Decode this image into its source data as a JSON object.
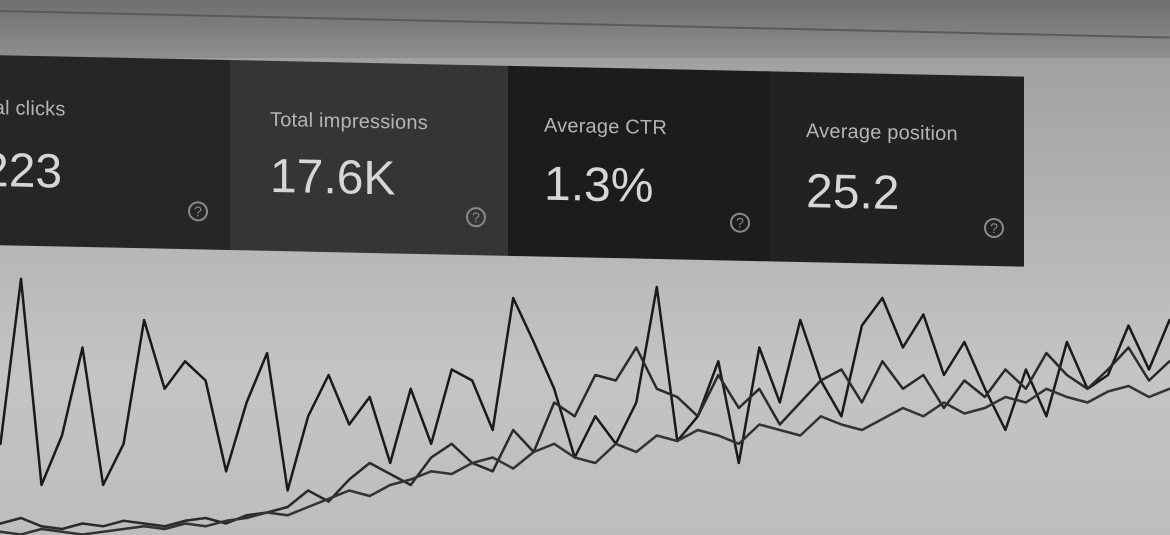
{
  "metrics": [
    {
      "label": "tal clicks",
      "value": "223",
      "icon": "help-circle-icon"
    },
    {
      "label": "Total impressions",
      "value": "17.6K",
      "icon": "help-circle-icon"
    },
    {
      "label": "Average CTR",
      "value": "1.3%",
      "icon": "help-circle-icon"
    },
    {
      "label": "Average position",
      "value": "25.2",
      "icon": "help-circle-icon"
    }
  ],
  "chart_data": {
    "type": "line",
    "grid": false,
    "legend": "none",
    "series": [
      {
        "values": [
          40,
          35,
          95,
          20,
          38,
          70,
          20,
          35,
          80,
          55,
          65,
          58,
          25,
          50,
          68,
          18,
          45,
          60,
          42,
          52,
          28,
          55,
          35,
          62,
          58,
          40,
          88,
          72,
          55,
          30,
          45,
          35,
          50,
          92,
          36,
          45,
          65,
          28,
          70,
          50,
          80,
          58,
          45,
          78,
          88,
          70,
          82,
          60,
          72,
          55,
          40,
          62,
          45,
          72,
          55,
          60,
          78,
          62,
          80,
          65
        ]
      },
      {
        "values": [
          5,
          6,
          8,
          5,
          4,
          6,
          5,
          7,
          6,
          5,
          7,
          8,
          6,
          9,
          10,
          12,
          18,
          14,
          22,
          28,
          24,
          20,
          30,
          35,
          28,
          25,
          40,
          32,
          50,
          45,
          60,
          58,
          70,
          55,
          52,
          45,
          60,
          48,
          55,
          42,
          50,
          58,
          62,
          50,
          65,
          55,
          60,
          48,
          58,
          52,
          62,
          55,
          68,
          60,
          55,
          62,
          70,
          58,
          65,
          60
        ]
      },
      {
        "values": [
          2,
          3,
          2,
          4,
          3,
          2,
          3,
          4,
          5,
          4,
          6,
          5,
          7,
          8,
          10,
          9,
          12,
          15,
          18,
          16,
          20,
          22,
          25,
          24,
          28,
          30,
          26,
          32,
          35,
          30,
          28,
          35,
          32,
          38,
          36,
          40,
          38,
          35,
          42,
          40,
          38,
          45,
          42,
          40,
          44,
          48,
          45,
          50,
          46,
          48,
          52,
          50,
          55,
          52,
          50,
          54,
          56,
          52,
          55,
          58
        ]
      }
    ]
  }
}
